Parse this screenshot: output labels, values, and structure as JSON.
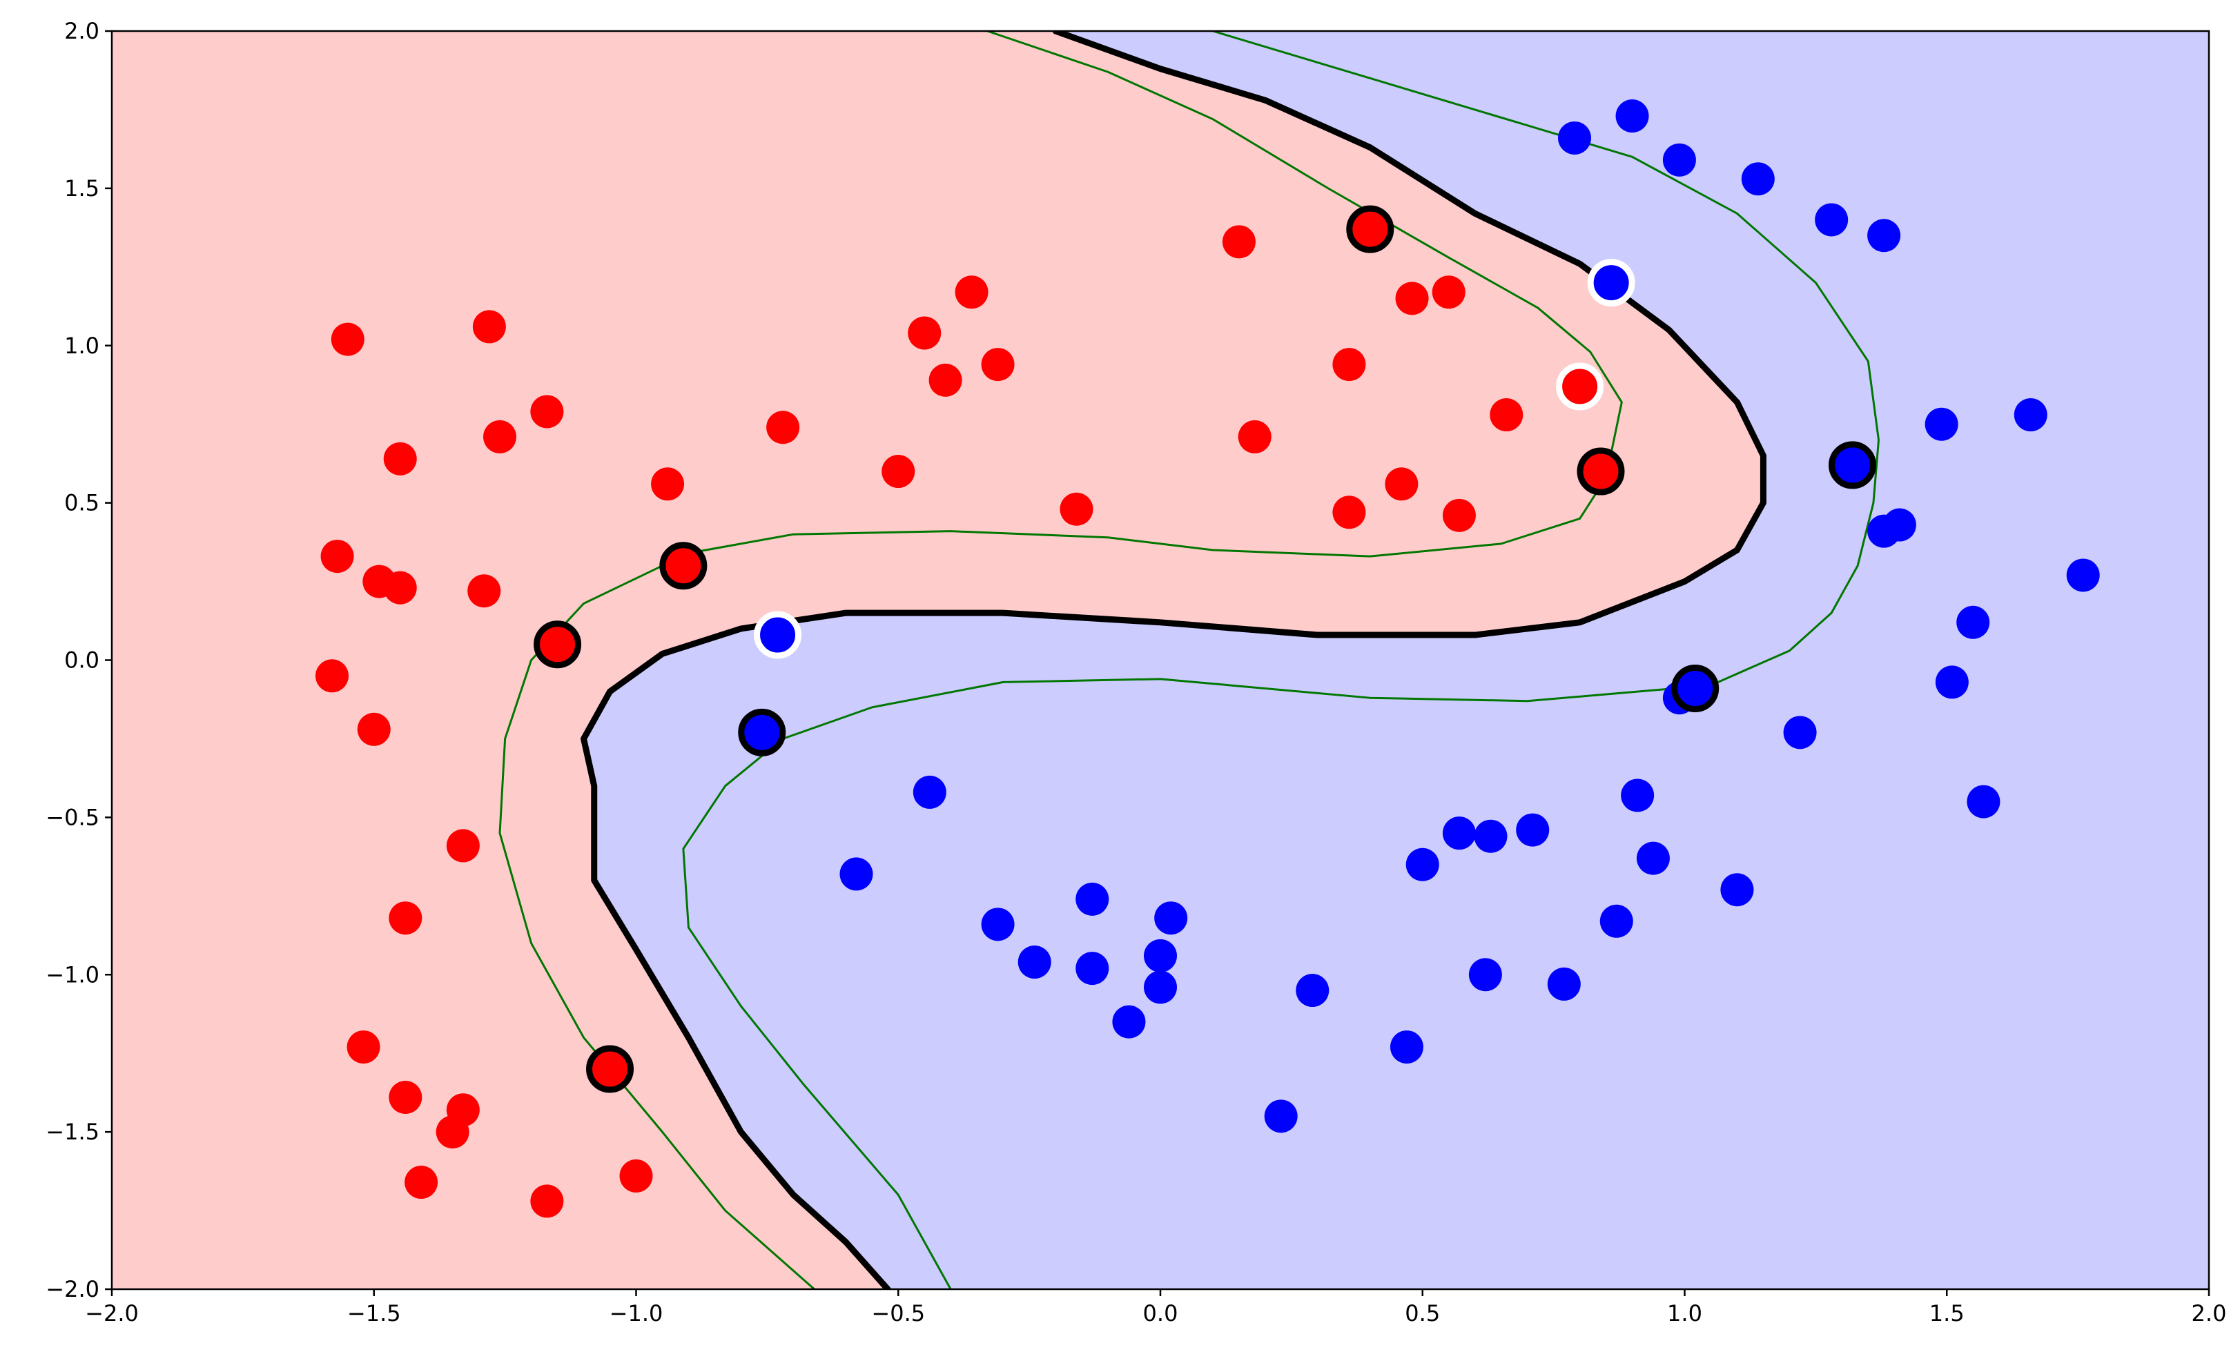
{
  "chart_data": {
    "type": "scatter",
    "title": "",
    "xlabel": "",
    "ylabel": "",
    "xlim": [
      -2.0,
      2.0
    ],
    "ylim": [
      -2.0,
      2.0
    ],
    "xticks": [
      "−2.0",
      "−1.5",
      "−1.0",
      "−0.5",
      "0.0",
      "0.5",
      "1.0",
      "1.5",
      "2.0"
    ],
    "yticks": [
      "2.0",
      "1.5",
      "1.0",
      "0.5",
      "0.0",
      "−0.5",
      "−1.0",
      "−1.5",
      "−2.0"
    ],
    "xtick_values": [
      -2.0,
      -1.5,
      -1.0,
      -0.5,
      0.0,
      0.5,
      1.0,
      1.5,
      2.0
    ],
    "ytick_values": [
      2.0,
      1.5,
      1.0,
      0.5,
      0.0,
      -0.5,
      -1.0,
      -1.5,
      -2.0
    ],
    "grid": false,
    "legend": "none",
    "colors": {
      "red_region": "#ffcccc",
      "blue_region": "#ccccff",
      "red_points": "#ff0000",
      "blue_points": "#0000ff",
      "decision_boundary": "#000000",
      "margin_lines": "#007700"
    },
    "decision_boundary": [
      [
        -0.2,
        2.0
      ],
      [
        0.0,
        1.88
      ],
      [
        0.2,
        1.78
      ],
      [
        0.4,
        1.63
      ],
      [
        0.6,
        1.42
      ],
      [
        0.8,
        1.26
      ],
      [
        0.97,
        1.05
      ],
      [
        1.1,
        0.82
      ],
      [
        1.15,
        0.65
      ],
      [
        1.15,
        0.5
      ],
      [
        1.1,
        0.35
      ],
      [
        1.0,
        0.25
      ],
      [
        0.8,
        0.12
      ],
      [
        0.6,
        0.08
      ],
      [
        0.3,
        0.08
      ],
      [
        0.0,
        0.12
      ],
      [
        -0.3,
        0.15
      ],
      [
        -0.6,
        0.15
      ],
      [
        -0.8,
        0.1
      ],
      [
        -0.95,
        0.02
      ],
      [
        -1.05,
        -0.1
      ],
      [
        -1.1,
        -0.25
      ],
      [
        -1.08,
        -0.4
      ],
      [
        -1.08,
        -0.7
      ],
      [
        -1.0,
        -0.92
      ],
      [
        -0.9,
        -1.2
      ],
      [
        -0.8,
        -1.5
      ],
      [
        -0.7,
        -1.7
      ],
      [
        -0.6,
        -1.85
      ],
      [
        -0.52,
        -2.0
      ]
    ],
    "margin_upper": [
      [
        -0.33,
        2.0
      ],
      [
        -0.1,
        1.87
      ],
      [
        0.1,
        1.72
      ],
      [
        0.32,
        1.5
      ],
      [
        0.55,
        1.28
      ],
      [
        0.72,
        1.12
      ],
      [
        0.82,
        0.98
      ],
      [
        0.88,
        0.82
      ],
      [
        0.85,
        0.58
      ],
      [
        0.8,
        0.45
      ],
      [
        0.65,
        0.37
      ],
      [
        0.4,
        0.33
      ],
      [
        0.1,
        0.35
      ],
      [
        -0.1,
        0.39
      ],
      [
        -0.4,
        0.41
      ],
      [
        -0.7,
        0.4
      ],
      [
        -0.9,
        0.34
      ],
      [
        -1.1,
        0.18
      ],
      [
        -1.2,
        0.0
      ],
      [
        -1.25,
        -0.25
      ],
      [
        -1.26,
        -0.55
      ],
      [
        -1.2,
        -0.9
      ],
      [
        -1.1,
        -1.2
      ],
      [
        -0.95,
        -1.5
      ],
      [
        -0.83,
        -1.75
      ],
      [
        -0.66,
        -2.0
      ]
    ],
    "margin_lower": [
      [
        0.1,
        2.0
      ],
      [
        0.4,
        1.85
      ],
      [
        0.7,
        1.7
      ],
      [
        0.9,
        1.6
      ],
      [
        1.1,
        1.42
      ],
      [
        1.25,
        1.2
      ],
      [
        1.35,
        0.95
      ],
      [
        1.37,
        0.7
      ],
      [
        1.36,
        0.5
      ],
      [
        1.33,
        0.3
      ],
      [
        1.28,
        0.15
      ],
      [
        1.2,
        0.03
      ],
      [
        1.05,
        -0.08
      ],
      [
        0.7,
        -0.13
      ],
      [
        0.4,
        -0.12
      ],
      [
        0.0,
        -0.06
      ],
      [
        -0.3,
        -0.07
      ],
      [
        -0.55,
        -0.15
      ],
      [
        -0.72,
        -0.25
      ],
      [
        -0.83,
        -0.4
      ],
      [
        -0.91,
        -0.6
      ],
      [
        -0.9,
        -0.85
      ],
      [
        -0.8,
        -1.1
      ],
      [
        -0.68,
        -1.35
      ],
      [
        -0.5,
        -1.7
      ],
      [
        -0.4,
        -2.0
      ]
    ],
    "series": [
      {
        "class": "red",
        "points": [
          [
            -1.55,
            1.02
          ],
          [
            -1.28,
            1.06
          ],
          [
            -1.17,
            0.79
          ],
          [
            -1.26,
            0.71
          ],
          [
            -1.45,
            0.64
          ],
          [
            -1.57,
            0.33
          ],
          [
            -1.49,
            0.25
          ],
          [
            -1.45,
            0.23
          ],
          [
            -1.29,
            0.22
          ],
          [
            -1.58,
            -0.05
          ],
          [
            -1.5,
            -0.22
          ],
          [
            -1.33,
            -0.59
          ],
          [
            -1.44,
            -0.82
          ],
          [
            -1.52,
            -1.23
          ],
          [
            -1.44,
            -1.39
          ],
          [
            -1.33,
            -1.43
          ],
          [
            -1.35,
            -1.5
          ],
          [
            -1.41,
            -1.66
          ],
          [
            -1.17,
            -1.72
          ],
          [
            -1.0,
            -1.64
          ],
          [
            -0.94,
            0.56
          ],
          [
            -0.72,
            0.74
          ],
          [
            -0.5,
            0.6
          ],
          [
            -0.45,
            1.04
          ],
          [
            -0.41,
            0.89
          ],
          [
            -0.36,
            1.17
          ],
          [
            -0.31,
            0.94
          ],
          [
            -0.16,
            0.48
          ],
          [
            0.15,
            1.33
          ],
          [
            0.18,
            0.71
          ],
          [
            0.36,
            0.94
          ],
          [
            0.36,
            0.47
          ],
          [
            0.46,
            0.56
          ],
          [
            0.48,
            1.15
          ],
          [
            0.55,
            1.17
          ],
          [
            0.57,
            0.46
          ],
          [
            0.66,
            0.78
          ]
        ]
      },
      {
        "class": "blue",
        "points": [
          [
            0.79,
            1.66
          ],
          [
            0.9,
            1.73
          ],
          [
            0.99,
            1.59
          ],
          [
            1.14,
            1.53
          ],
          [
            1.28,
            1.4
          ],
          [
            1.38,
            1.35
          ],
          [
            1.49,
            0.75
          ],
          [
            1.66,
            0.78
          ],
          [
            1.38,
            0.41
          ],
          [
            1.41,
            0.43
          ],
          [
            1.76,
            0.27
          ],
          [
            1.55,
            0.12
          ],
          [
            1.51,
            -0.07
          ],
          [
            1.57,
            -0.45
          ],
          [
            1.22,
            -0.23
          ],
          [
            0.99,
            -0.12
          ],
          [
            0.91,
            -0.43
          ],
          [
            0.94,
            -0.63
          ],
          [
            1.1,
            -0.73
          ],
          [
            0.87,
            -0.83
          ],
          [
            0.71,
            -0.54
          ],
          [
            0.63,
            -0.56
          ],
          [
            0.57,
            -0.55
          ],
          [
            0.5,
            -0.65
          ],
          [
            0.62,
            -1.0
          ],
          [
            0.77,
            -1.03
          ],
          [
            0.47,
            -1.23
          ],
          [
            0.29,
            -1.05
          ],
          [
            0.23,
            -1.45
          ],
          [
            -0.44,
            -0.42
          ],
          [
            -0.58,
            -0.68
          ],
          [
            -0.31,
            -0.84
          ],
          [
            -0.24,
            -0.96
          ],
          [
            -0.13,
            -0.76
          ],
          [
            -0.13,
            -0.98
          ],
          [
            0.02,
            -0.82
          ],
          [
            0.0,
            -0.94
          ],
          [
            0.0,
            -1.04
          ],
          [
            -0.06,
            -1.15
          ]
        ]
      }
    ],
    "support_vectors": [
      {
        "class": "red",
        "x": 0.4,
        "y": 1.37,
        "ring": "black"
      },
      {
        "class": "red",
        "x": 0.84,
        "y": 0.6,
        "ring": "black"
      },
      {
        "class": "red",
        "x": -0.91,
        "y": 0.3,
        "ring": "black"
      },
      {
        "class": "red",
        "x": -1.15,
        "y": 0.05,
        "ring": "black"
      },
      {
        "class": "red",
        "x": -1.05,
        "y": -1.3,
        "ring": "black"
      },
      {
        "class": "red",
        "x": 0.8,
        "y": 0.87,
        "ring": "white"
      },
      {
        "class": "blue",
        "x": 1.32,
        "y": 0.62,
        "ring": "black"
      },
      {
        "class": "blue",
        "x": 1.02,
        "y": -0.09,
        "ring": "black"
      },
      {
        "class": "blue",
        "x": -0.76,
        "y": -0.23,
        "ring": "black"
      },
      {
        "class": "blue",
        "x": 0.86,
        "y": 1.2,
        "ring": "white"
      },
      {
        "class": "blue",
        "x": -0.73,
        "y": 0.08,
        "ring": "white"
      }
    ]
  }
}
